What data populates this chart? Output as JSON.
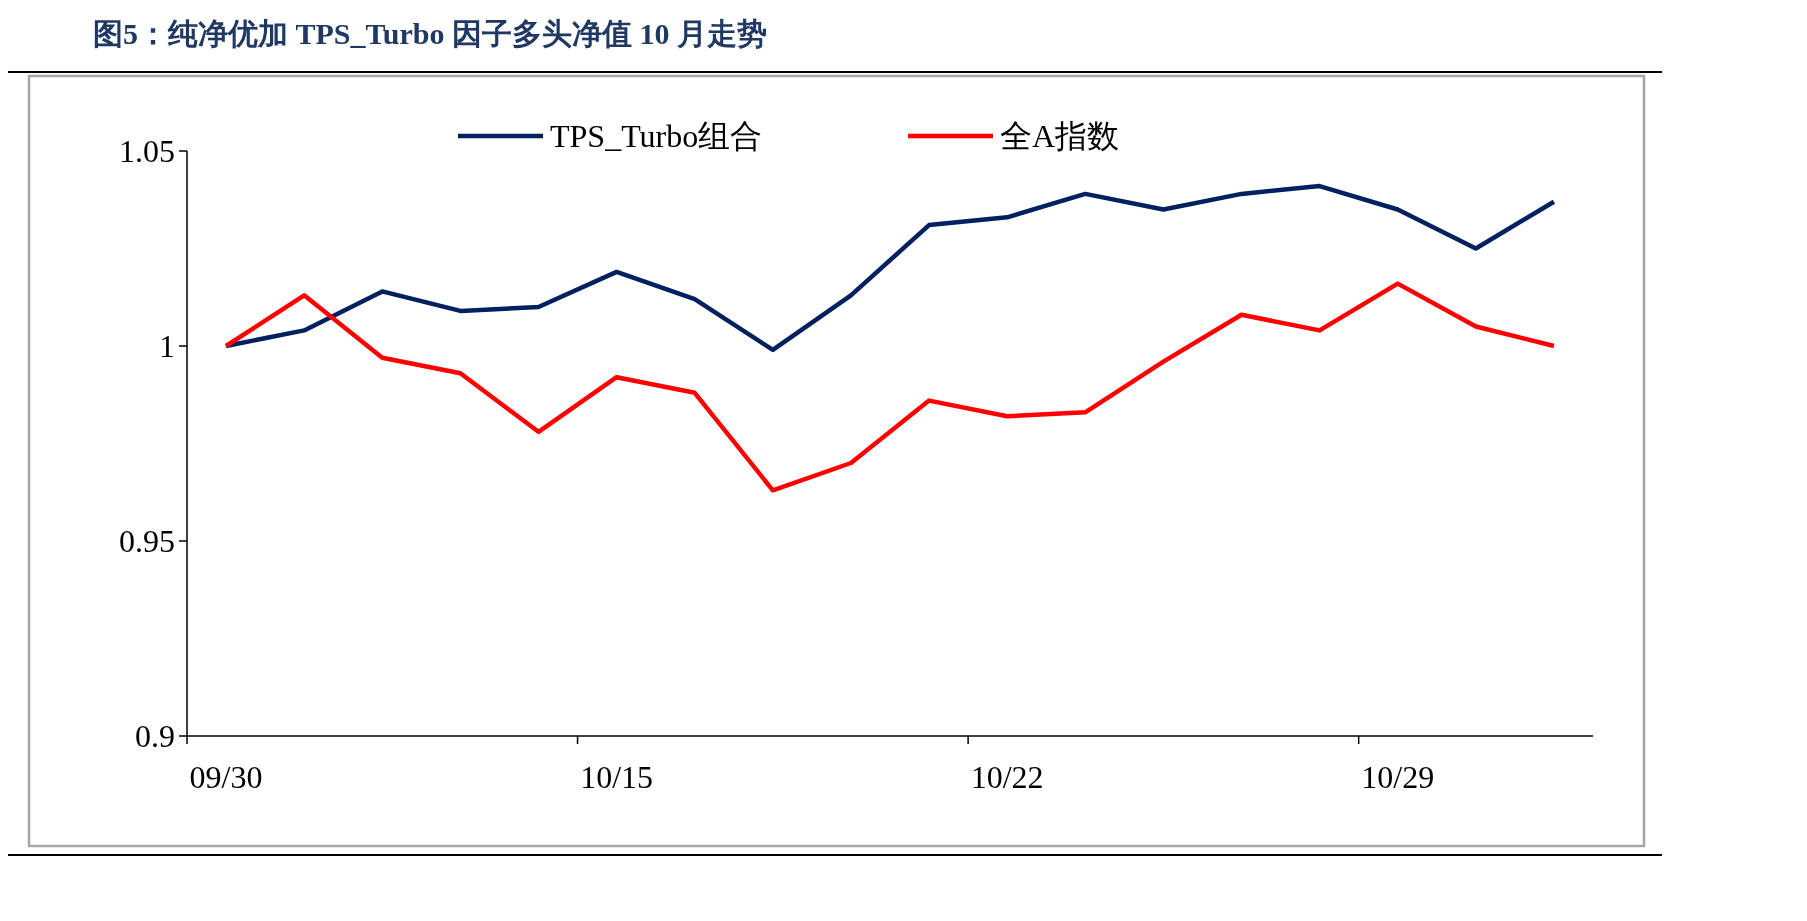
{
  "chart_data": {
    "type": "line",
    "title": "图5：纯净优加 TPS_Turbo 因子多头净值 10 月走势",
    "categories": [
      "09/30",
      null,
      null,
      null,
      null,
      "10/15",
      null,
      null,
      null,
      null,
      "10/22",
      null,
      null,
      null,
      null,
      "10/29",
      null,
      null
    ],
    "series": [
      {
        "name": "TPS_Turbo组合",
        "color": "#002060",
        "values": [
          1.0,
          1.004,
          1.014,
          1.009,
          1.01,
          1.019,
          1.012,
          0.999,
          1.013,
          1.031,
          1.033,
          1.039,
          1.035,
          1.039,
          1.041,
          1.035,
          1.025,
          1.037
        ]
      },
      {
        "name": "全A指数",
        "color": "#ff0000",
        "values": [
          1.0,
          1.013,
          0.997,
          0.993,
          0.978,
          0.992,
          0.988,
          0.963,
          0.97,
          0.986,
          0.982,
          0.983,
          0.996,
          1.008,
          1.004,
          1.016,
          1.005,
          1.0
        ]
      }
    ],
    "ylim": [
      0.9,
      1.05
    ],
    "yticks": [
      0.9,
      0.95,
      1,
      1.05
    ],
    "grid": false,
    "legend": "top",
    "marker": "none",
    "line_style": "solid"
  }
}
